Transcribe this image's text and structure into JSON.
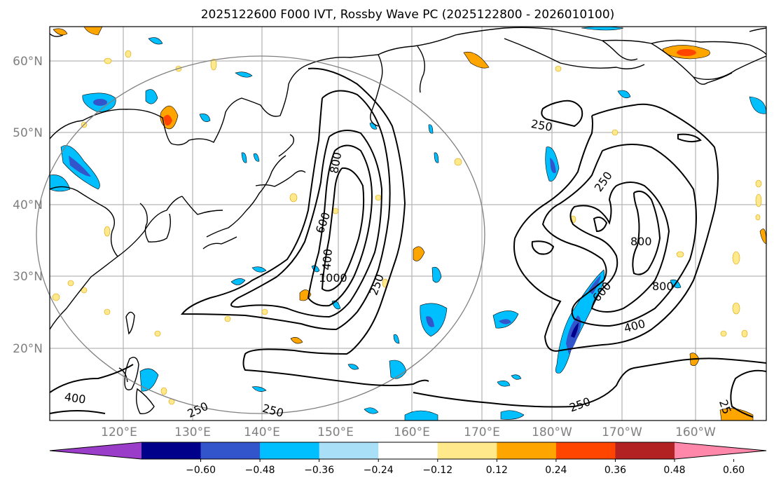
{
  "title": "2025122600 F000 IVT, Rossby Wave PC (2025122800 - 2026010100)",
  "lat_labels": [
    "60°N",
    "50°N",
    "40°N",
    "30°N",
    "20°N"
  ],
  "lon_labels": [
    "120°E",
    "130°E",
    "140°E",
    "150°E",
    "160°E",
    "170°E",
    "180°W",
    "170°W",
    "160°W"
  ],
  "contour_labels": [
    "250",
    "400",
    "600",
    "800",
    "1000",
    "250",
    "400",
    "600",
    "800",
    "800",
    "250",
    "250",
    "400",
    "250",
    "250",
    "25"
  ],
  "colorbar": {
    "ticks": [
      "−0.60",
      "−0.48",
      "−0.36",
      "−0.24",
      "−0.12",
      "0.12",
      "0.24",
      "0.36",
      "0.48",
      "0.60"
    ],
    "colors": [
      "#9a3dc9",
      "#00008b",
      "#3355cc",
      "#00bfff",
      "#aadff8",
      "#ffffff",
      "#ffe98a",
      "#ffa500",
      "#ff4500",
      "#b22222",
      "#ff88aa"
    ]
  }
}
